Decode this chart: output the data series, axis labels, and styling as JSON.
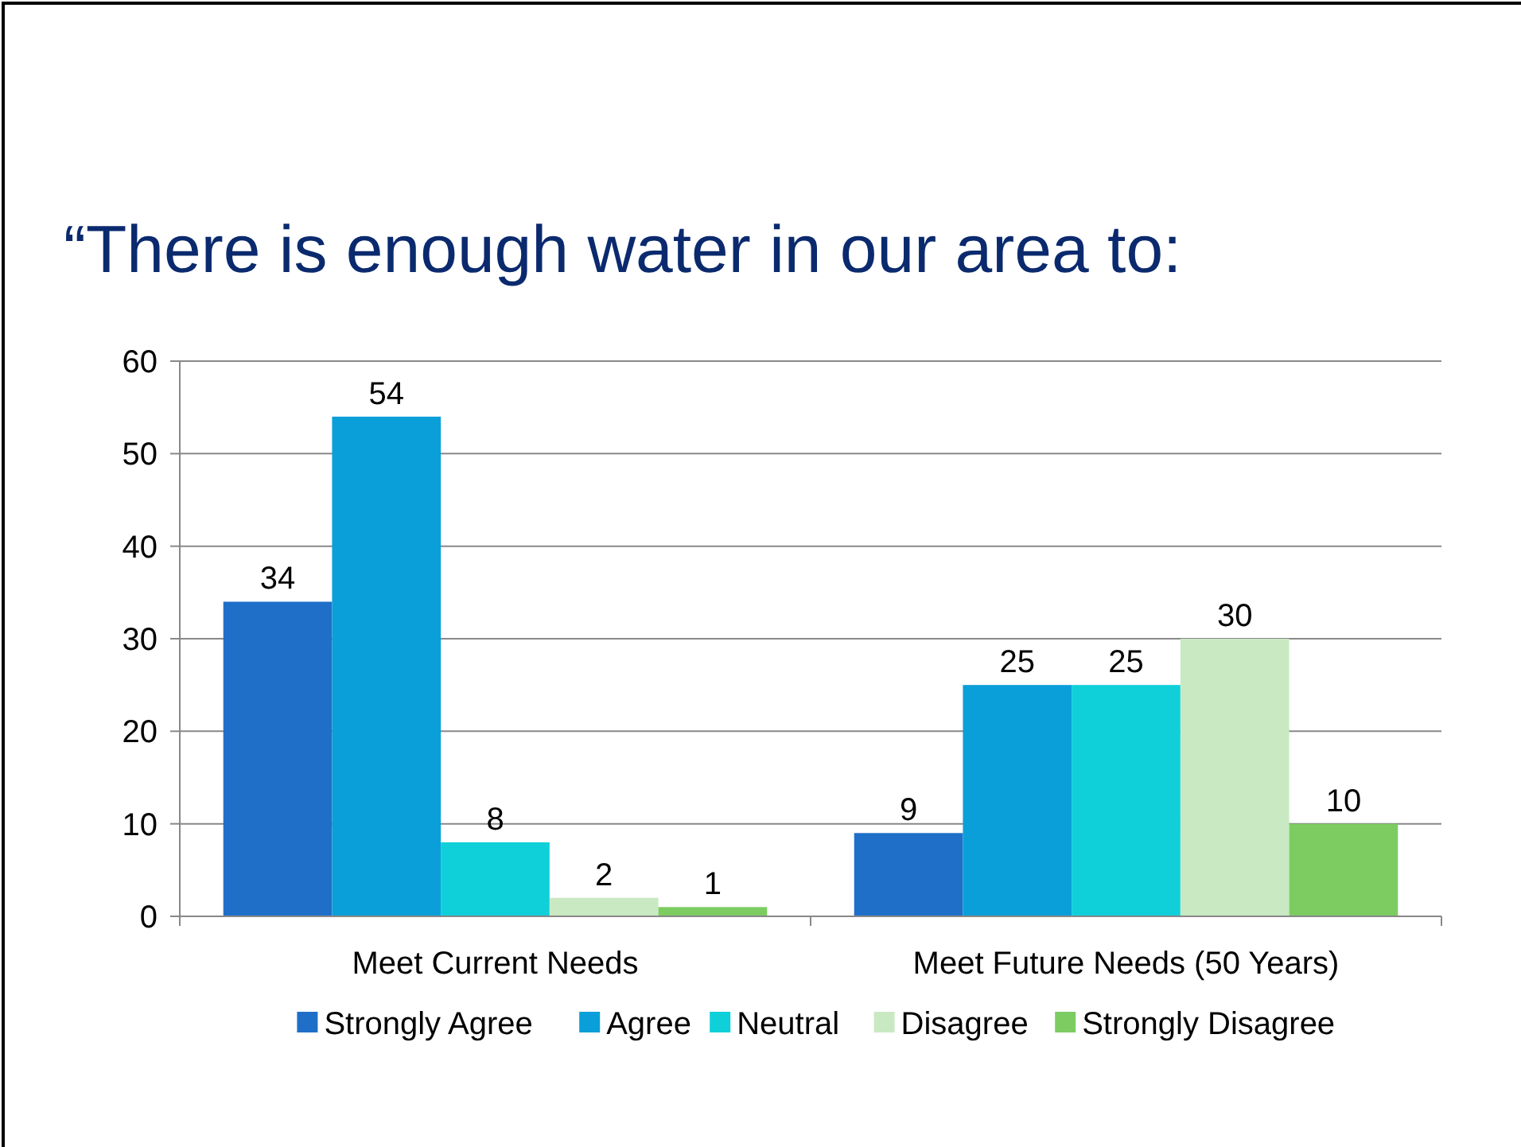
{
  "chart_data": {
    "type": "bar",
    "title": "“There is enough water in our area to:",
    "categories": [
      "Meet Current Needs",
      "Meet Future Needs (50 Years)"
    ],
    "series": [
      {
        "name": "Strongly Agree",
        "color": "#1f6fc9",
        "values": [
          34,
          9
        ]
      },
      {
        "name": "Agree",
        "color": "#0a9fd9",
        "values": [
          54,
          25
        ]
      },
      {
        "name": "Neutral",
        "color": "#0fd0d9",
        "values": [
          8,
          25
        ]
      },
      {
        "name": "Disagree",
        "color": "#c9e9c2",
        "values": [
          2,
          30
        ]
      },
      {
        "name": "Strongly Disagree",
        "color": "#7dcc62",
        "values": [
          1,
          10
        ]
      }
    ],
    "ylim": [
      0,
      60
    ],
    "yticks": [
      0,
      10,
      20,
      30,
      40,
      50,
      60
    ],
    "grid": "y",
    "legend": "bottom",
    "data_labels": true
  }
}
